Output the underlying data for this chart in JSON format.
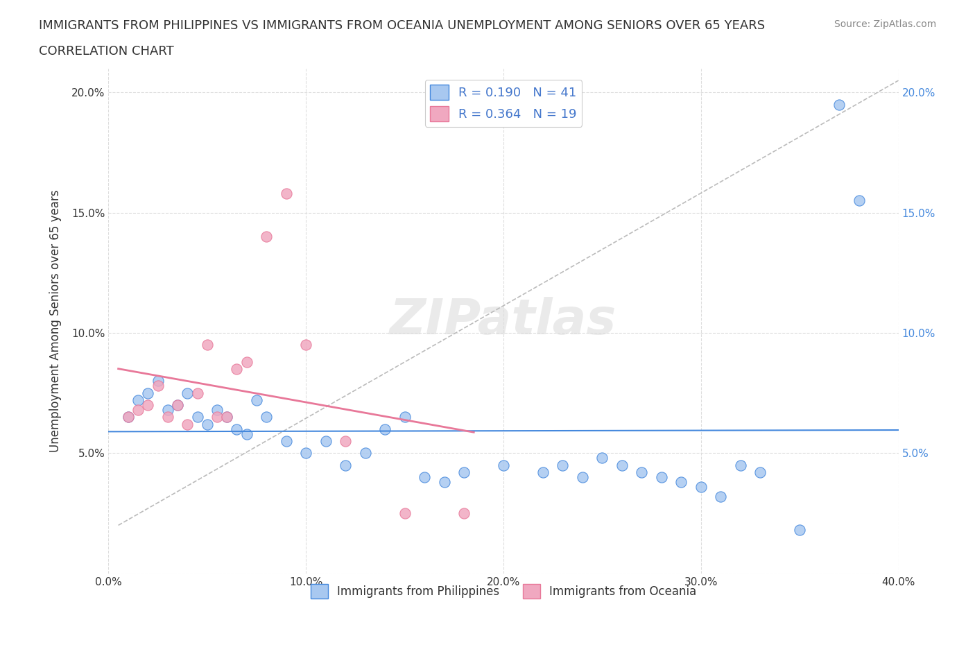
{
  "title_line1": "IMMIGRANTS FROM PHILIPPINES VS IMMIGRANTS FROM OCEANIA UNEMPLOYMENT AMONG SENIORS OVER 65 YEARS",
  "title_line2": "CORRELATION CHART",
  "source_text": "Source: ZipAtlas.com",
  "ylabel": "Unemployment Among Seniors over 65 years",
  "xlim": [
    0.0,
    0.4
  ],
  "ylim": [
    0.0,
    0.21
  ],
  "x_ticks": [
    0.0,
    0.1,
    0.2,
    0.3,
    0.4
  ],
  "x_tick_labels": [
    "0.0%",
    "10.0%",
    "20.0%",
    "30.0%",
    "40.0%"
  ],
  "y_ticks": [
    0.0,
    0.05,
    0.1,
    0.15,
    0.2
  ],
  "y_tick_labels": [
    "",
    "5.0%",
    "10.0%",
    "15.0%",
    "20.0%"
  ],
  "philippines_R": 0.19,
  "philippines_N": 41,
  "oceania_R": 0.364,
  "oceania_N": 19,
  "philippines_color": "#a8c8f0",
  "oceania_color": "#f0a8c0",
  "philippines_line_color": "#4488dd",
  "oceania_line_color": "#e87899",
  "legend_text_color": "#4477cc",
  "philippines_scatter_x": [
    0.01,
    0.015,
    0.02,
    0.025,
    0.03,
    0.035,
    0.04,
    0.045,
    0.05,
    0.055,
    0.06,
    0.065,
    0.07,
    0.075,
    0.08,
    0.09,
    0.1,
    0.11,
    0.12,
    0.13,
    0.14,
    0.15,
    0.16,
    0.17,
    0.18,
    0.2,
    0.22,
    0.23,
    0.24,
    0.25,
    0.26,
    0.27,
    0.28,
    0.29,
    0.3,
    0.31,
    0.32,
    0.33,
    0.35,
    0.37,
    0.38
  ],
  "philippines_scatter_y": [
    0.065,
    0.072,
    0.075,
    0.08,
    0.068,
    0.07,
    0.075,
    0.065,
    0.062,
    0.068,
    0.065,
    0.06,
    0.058,
    0.072,
    0.065,
    0.055,
    0.05,
    0.055,
    0.045,
    0.05,
    0.06,
    0.065,
    0.04,
    0.038,
    0.042,
    0.045,
    0.042,
    0.045,
    0.04,
    0.048,
    0.045,
    0.042,
    0.04,
    0.038,
    0.036,
    0.032,
    0.045,
    0.042,
    0.018,
    0.195,
    0.155
  ],
  "oceania_scatter_x": [
    0.01,
    0.015,
    0.02,
    0.025,
    0.03,
    0.035,
    0.04,
    0.045,
    0.05,
    0.055,
    0.06,
    0.065,
    0.07,
    0.08,
    0.09,
    0.1,
    0.12,
    0.15,
    0.18
  ],
  "oceania_scatter_y": [
    0.065,
    0.068,
    0.07,
    0.078,
    0.065,
    0.07,
    0.062,
    0.075,
    0.095,
    0.065,
    0.065,
    0.085,
    0.088,
    0.14,
    0.158,
    0.095,
    0.055,
    0.025,
    0.025
  ],
  "background_color": "#ffffff",
  "grid_color": "#dddddd"
}
